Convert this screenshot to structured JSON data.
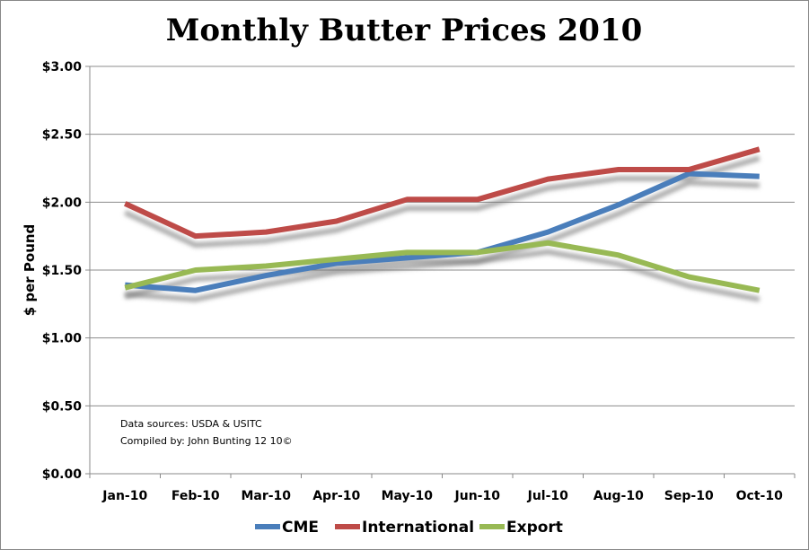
{
  "chart_data": {
    "type": "line",
    "title": "Monthly Butter Prices 2010",
    "xlabel": "",
    "ylabel": "$ per Pound",
    "categories": [
      "Jan-10",
      "Feb-10",
      "Mar-10",
      "Apr-10",
      "May-10",
      "Jun-10",
      "Jul-10",
      "Aug-10",
      "Sep-10",
      "Oct-10"
    ],
    "ylim": [
      0,
      3
    ],
    "yticks": [
      0,
      0.5,
      1,
      1.5,
      2,
      2.5,
      3
    ],
    "ytick_labels": [
      "$0.00",
      "$0.50",
      "$1.00",
      "$1.50",
      "$2.00",
      "$2.50",
      "$3.00"
    ],
    "grid": true,
    "legend_position": "bottom",
    "series": [
      {
        "name": "CME",
        "color": "#4a7ebb",
        "values": [
          1.39,
          1.35,
          1.46,
          1.55,
          1.59,
          1.63,
          1.78,
          1.98,
          2.21,
          2.19
        ]
      },
      {
        "name": "International",
        "color": "#be4b48",
        "values": [
          1.99,
          1.75,
          1.78,
          1.86,
          2.02,
          2.02,
          2.17,
          2.24,
          2.24,
          2.39
        ]
      },
      {
        "name": "Export",
        "color": "#98b954",
        "values": [
          1.37,
          1.5,
          1.53,
          1.58,
          1.63,
          1.63,
          1.7,
          1.61,
          1.45,
          1.35
        ]
      }
    ],
    "annotations": [
      "Data sources: USDA & USITC",
      "Compiled by: John Bunting 12 10©"
    ]
  }
}
